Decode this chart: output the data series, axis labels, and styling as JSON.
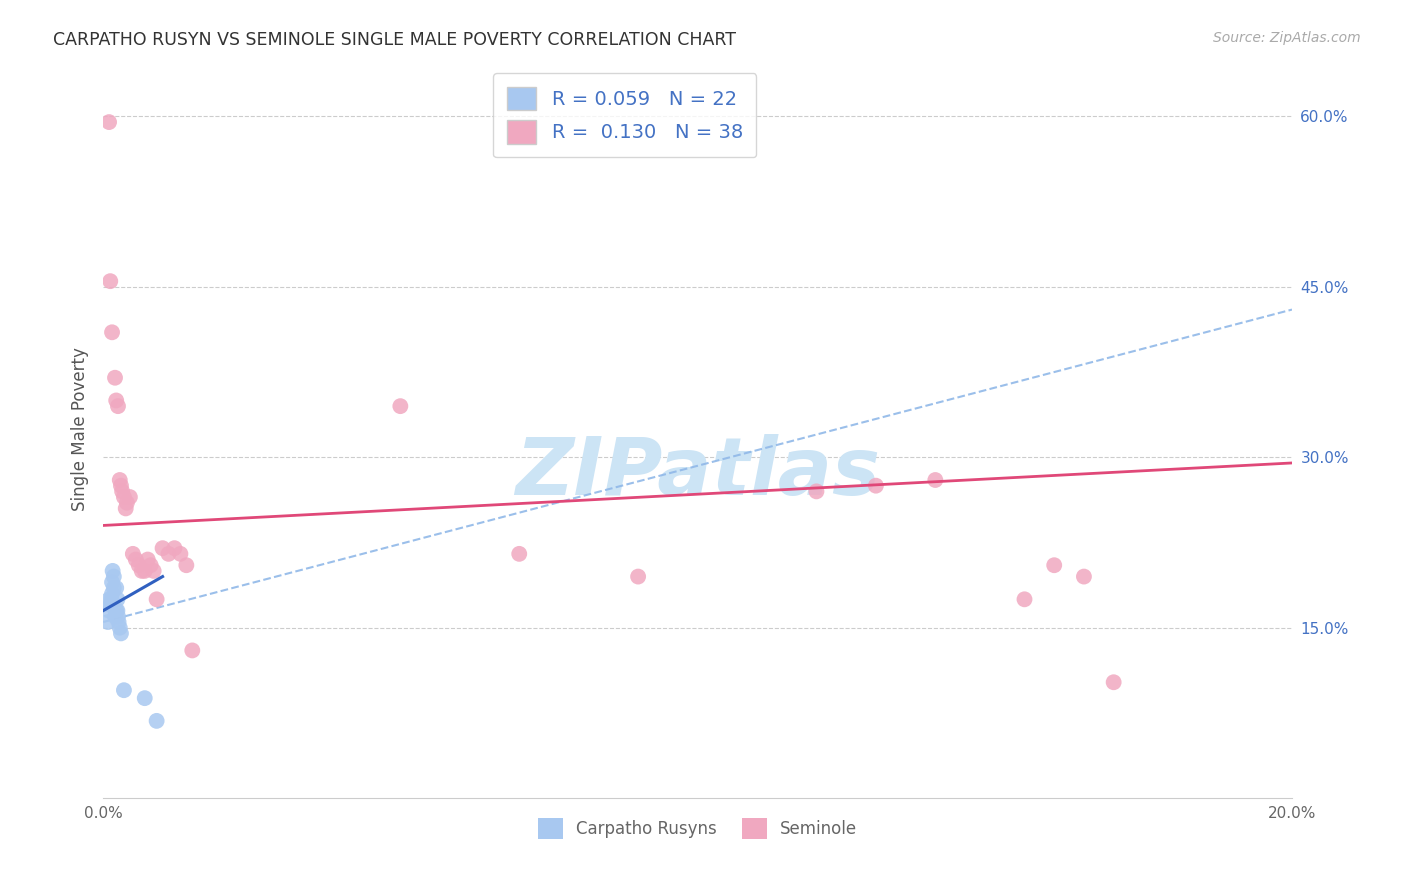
{
  "title": "CARPATHO RUSYN VS SEMINOLE SINGLE MALE POVERTY CORRELATION CHART",
  "source": "Source: ZipAtlas.com",
  "ylabel": "Single Male Poverty",
  "xlim": [
    0.0,
    0.2
  ],
  "ylim": [
    0.0,
    0.65
  ],
  "carpatho_R": 0.059,
  "carpatho_N": 22,
  "seminole_R": 0.13,
  "seminole_N": 38,
  "carpatho_color": "#a8c8f0",
  "seminole_color": "#f0a8c0",
  "carpatho_line_color": "#3060c0",
  "seminole_line_color": "#e04878",
  "dashed_line_color": "#90b8e8",
  "background_color": "#ffffff",
  "watermark_text": "ZIPatlas",
  "watermark_color": "#cce4f5",
  "right_tick_color": "#4472c4",
  "carpatho_x": [
    0.0008,
    0.001,
    0.001,
    0.0012,
    0.0014,
    0.0015,
    0.0015,
    0.0016,
    0.0018,
    0.0018,
    0.002,
    0.0022,
    0.0022,
    0.0024,
    0.0024,
    0.0025,
    0.0026,
    0.0028,
    0.003,
    0.0035,
    0.007,
    0.009
  ],
  "carpatho_y": [
    0.155,
    0.165,
    0.175,
    0.17,
    0.175,
    0.18,
    0.19,
    0.2,
    0.185,
    0.195,
    0.16,
    0.165,
    0.185,
    0.175,
    0.165,
    0.16,
    0.155,
    0.15,
    0.145,
    0.095,
    0.088,
    0.068
  ],
  "seminole_x": [
    0.001,
    0.0012,
    0.0015,
    0.002,
    0.0022,
    0.0025,
    0.0028,
    0.003,
    0.0032,
    0.0035,
    0.0038,
    0.004,
    0.0045,
    0.005,
    0.0055,
    0.006,
    0.0065,
    0.007,
    0.0075,
    0.008,
    0.0085,
    0.009,
    0.01,
    0.011,
    0.012,
    0.013,
    0.014,
    0.015,
    0.05,
    0.07,
    0.09,
    0.12,
    0.13,
    0.14,
    0.155,
    0.16,
    0.165,
    0.17
  ],
  "seminole_y": [
    0.595,
    0.455,
    0.41,
    0.37,
    0.35,
    0.345,
    0.28,
    0.275,
    0.27,
    0.265,
    0.255,
    0.26,
    0.265,
    0.215,
    0.21,
    0.205,
    0.2,
    0.2,
    0.21,
    0.205,
    0.2,
    0.175,
    0.22,
    0.215,
    0.22,
    0.215,
    0.205,
    0.13,
    0.345,
    0.215,
    0.195,
    0.27,
    0.275,
    0.28,
    0.175,
    0.205,
    0.195,
    0.102
  ],
  "seminole_trend_x0": 0.0,
  "seminole_trend_y0": 0.24,
  "seminole_trend_x1": 0.2,
  "seminole_trend_y1": 0.295,
  "dashed_trend_x0": 0.0,
  "dashed_trend_y0": 0.155,
  "dashed_trend_x1": 0.2,
  "dashed_trend_y1": 0.43,
  "blue_trend_x0": 0.0,
  "blue_trend_y0": 0.165,
  "blue_trend_x1": 0.01,
  "blue_trend_y1": 0.195
}
